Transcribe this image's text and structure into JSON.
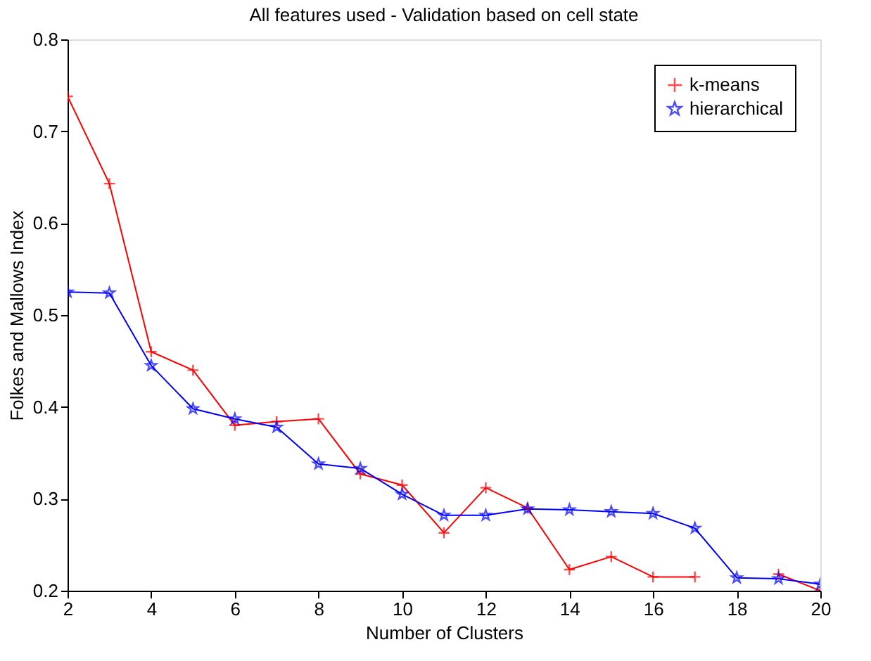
{
  "chart_data": {
    "type": "line",
    "title": "All features used - Validation based on cell state",
    "xlabel": "Number of Clusters",
    "ylabel": "Folkes and Mallows Index",
    "x": [
      2,
      3,
      4,
      5,
      6,
      7,
      8,
      9,
      10,
      11,
      12,
      13,
      14,
      15,
      16,
      17,
      18,
      19,
      20
    ],
    "series": [
      {
        "name": "k-means",
        "color": "#ff0000",
        "marker": "cross",
        "values": [
          0.738,
          0.643,
          0.46,
          0.44,
          0.38,
          0.384,
          0.387,
          0.327,
          0.315,
          0.263,
          0.312,
          0.29,
          0.223,
          0.237,
          0.215,
          0.215,
          null,
          0.218,
          0.2
        ]
      },
      {
        "name": "hierarchical",
        "color": "#0000ff",
        "marker": "star",
        "values": [
          0.525,
          0.524,
          0.445,
          0.398,
          0.387,
          0.378,
          0.338,
          0.333,
          0.305,
          0.282,
          0.282,
          0.289,
          0.288,
          0.286,
          0.284,
          0.268,
          0.214,
          0.213,
          0.207
        ]
      }
    ],
    "xlim": [
      2,
      20
    ],
    "xticks": [
      2,
      4,
      6,
      8,
      10,
      12,
      14,
      16,
      18,
      20
    ],
    "ylim": [
      0.2,
      0.8
    ],
    "yticks": [
      0.2,
      0.3,
      0.4,
      0.5,
      0.6,
      0.7,
      0.8
    ],
    "grid": false,
    "legend": "top right",
    "line_style": "solid"
  }
}
